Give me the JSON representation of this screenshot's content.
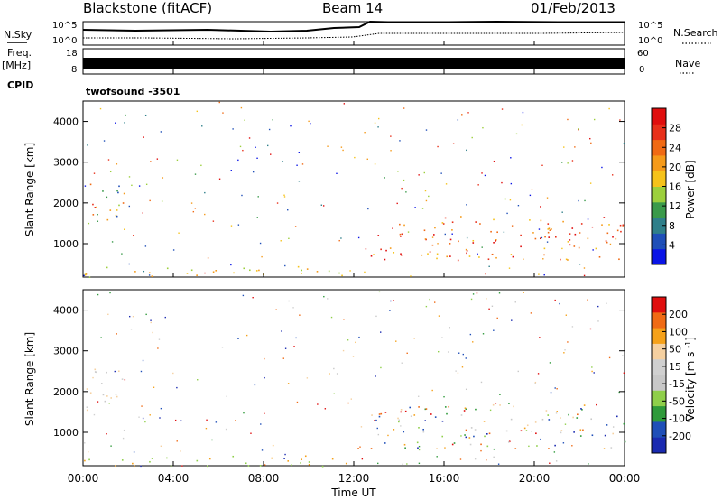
{
  "header": {
    "site": "Blackstone (fitACF)",
    "beam": "Beam 14",
    "date": "01/Feb/2013"
  },
  "left_labels": {
    "nsky": "N.Sky",
    "freq": "Freq.",
    "freq_unit": "[MHz]",
    "cpid": "CPID"
  },
  "right_labels": {
    "nsearch": "N.Search",
    "nave": "Nave"
  },
  "cpid_text": "twofsound -3501",
  "noise_panel": {
    "left_ticks": [
      "10^5",
      "10^0"
    ],
    "right_ticks": [
      "10^5",
      "10^0"
    ]
  },
  "freq_panel": {
    "left_ticks": [
      "18",
      "8"
    ],
    "right_ticks": [
      "60",
      "0"
    ]
  },
  "x_axis": {
    "label": "Time UT",
    "ticks": [
      "00:00",
      "04:00",
      "08:00",
      "12:00",
      "16:00",
      "20:00",
      "00:00"
    ]
  },
  "colors": {
    "power_scale": [
      "#0a14e6",
      "#1f4fb8",
      "#2f7f8a",
      "#3a9a4a",
      "#9ccf3c",
      "#f5c21a",
      "#f59a1a",
      "#f06a14",
      "#e8301a",
      "#e00e0e"
    ],
    "velocity_scale": [
      "#e00e0e",
      "#f06a14",
      "#f5a11a",
      "#f5d0a0",
      "#d0d0d0",
      "#c8c8c8",
      "#8fcf4a",
      "#2f9a3a",
      "#1f4fb8",
      "#1a2ab0"
    ]
  },
  "chart_data": [
    {
      "type": "heatmap",
      "name": "power",
      "ylabel": "Slant Range [km]",
      "yticks": [
        1000,
        2000,
        3000,
        4000
      ],
      "colorbar_label": "Power [dB]",
      "colorbar_ticks": [
        "4",
        "8",
        "12",
        "16",
        "20",
        "24",
        "28"
      ],
      "xlim": [
        "00:00",
        "24:00"
      ],
      "ylim": [
        180,
        4500
      ],
      "features": [
        {
          "t0": 0.0,
          "t1": 1.8,
          "r0": 1500,
          "r1": 2600,
          "level": "mixed-high"
        },
        {
          "t0": 0.0,
          "t1": 12.0,
          "r0": 180,
          "r1": 450,
          "level": "low"
        },
        {
          "t0": 12.7,
          "t1": 24.0,
          "r0": 600,
          "r1": 1700,
          "level": "high"
        }
      ]
    },
    {
      "type": "heatmap",
      "name": "velocity",
      "ylabel": "Slant Range [km]",
      "yticks": [
        1000,
        2000,
        3000,
        4000
      ],
      "colorbar_label": "Velocity [m s^-1]",
      "colorbar_ticks": [
        "200",
        "100",
        "50",
        "15",
        "-15",
        "-50",
        "-100",
        "-200"
      ],
      "xlim": [
        "00:00",
        "24:00"
      ],
      "ylim": [
        180,
        4500
      ],
      "features": [
        {
          "t0": 0.0,
          "t1": 1.8,
          "r0": 1500,
          "r1": 2600,
          "level": "near-zero"
        },
        {
          "t0": 0.0,
          "t1": 12.0,
          "r0": 180,
          "r1": 450,
          "level": "negative-small"
        },
        {
          "t0": 12.7,
          "t1": 24.0,
          "r0": 600,
          "r1": 1700,
          "level": "mixed"
        }
      ]
    }
  ]
}
